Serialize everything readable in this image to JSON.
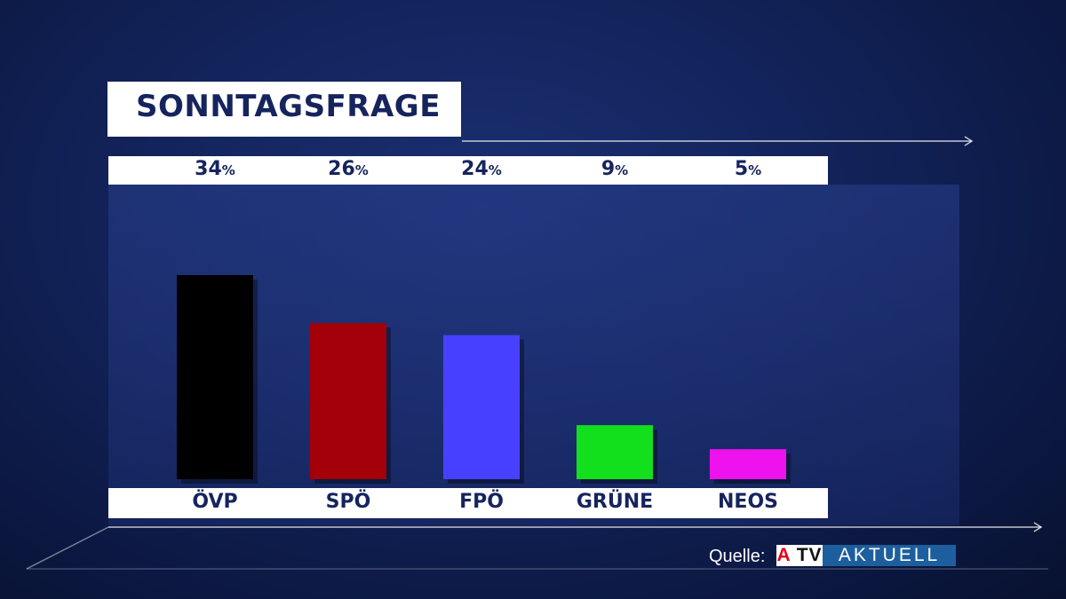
{
  "title": "SONNTAGSFRAGE",
  "chart_data": {
    "type": "bar",
    "title": "SONNTAGSFRAGE",
    "categories": [
      "ÖVP",
      "SPÖ",
      "FPÖ",
      "GRÜNE",
      "NEOS"
    ],
    "values": [
      34,
      26,
      24,
      9,
      5
    ],
    "value_labels": [
      "34",
      "26",
      "24",
      "9",
      "5"
    ],
    "value_unit": "%",
    "colors": [
      "#000000",
      "#a30009",
      "#4741ff",
      "#12e01c",
      "#ee12ee"
    ],
    "xlabel": "",
    "ylabel": "",
    "ylim": [
      0,
      34
    ],
    "grid": false,
    "legend": "none"
  },
  "source": {
    "label": "Quelle:",
    "logo_atv": "ATV",
    "logo_aktuell": "AKTUELL"
  },
  "colors": {
    "background": "#13245c",
    "text_dark": "#16245e",
    "logo_blue": "#1d5f9e",
    "logo_red": "#e3001b"
  }
}
